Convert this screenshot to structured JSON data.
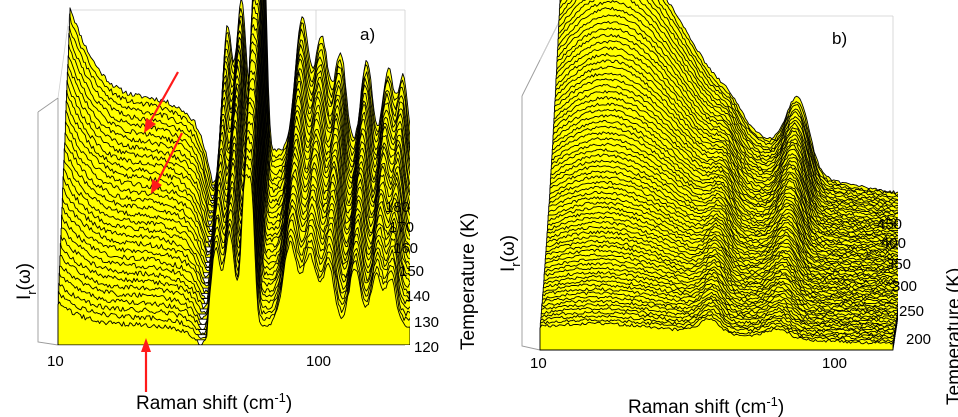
{
  "chart_data": [
    {
      "type": "area",
      "panel": "a)",
      "xlabel_base": "Raman shift (cm",
      "xlabel_sup": "-1",
      "xlabel_end": ")",
      "x_scale": "log",
      "x_ticks": [
        "10",
        "100"
      ],
      "xlim": [
        10,
        200
      ],
      "ylabel": "I",
      "ylabel_sub": "r",
      "ylabel_end": "(ω)",
      "zlabel": "Temperature (K)",
      "z_ticks": [
        "120",
        "130",
        "140",
        "150",
        "160",
        "170",
        "180"
      ],
      "zlim": [
        120,
        185
      ],
      "series_count": 32,
      "peaks_cm1": [
        38,
        43,
        49,
        52,
        72,
        85,
        100,
        125,
        150,
        170
      ],
      "arrows": 3
    },
    {
      "type": "area",
      "panel": "b)",
      "xlabel_base": "Raman shift (cm",
      "xlabel_sup": "-1",
      "xlabel_end": ")",
      "x_scale": "log",
      "x_ticks": [
        "10",
        "100"
      ],
      "xlim": [
        10,
        160
      ],
      "ylabel": "I",
      "ylabel_sub": "r",
      "ylabel_end": "(ω)",
      "zlabel": "Temperature (K)",
      "z_ticks": [
        "200",
        "250",
        "300",
        "350",
        "400",
        "450"
      ],
      "zlim": [
        195,
        455
      ],
      "series_count": 70,
      "peaks_cm1": [
        38,
        65
      ]
    }
  ]
}
